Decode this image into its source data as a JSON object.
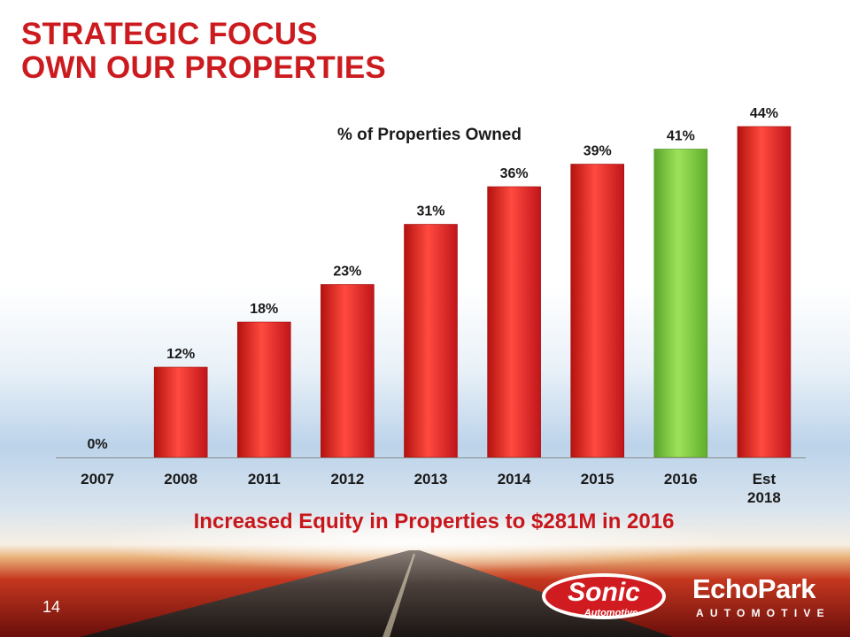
{
  "slide": {
    "title_line1": "STRATEGIC FOCUS",
    "title_line2": "OWN OUR PROPERTIES",
    "caption": "Increased Equity in Properties to $281M in 2016",
    "page_number": "14"
  },
  "logos": {
    "sonic_word": "Sonic",
    "sonic_sub": "Automotive",
    "echopark_word": "EchoPark",
    "echopark_sub": "AUTOMOTIVE"
  },
  "colors": {
    "title": "#cc1b1f",
    "bar_red": "#e52b25",
    "bar_highlight": "#7ed142",
    "caption": "#c8171c"
  },
  "chart_data": {
    "type": "bar",
    "title": "% of Properties Owned",
    "categories": [
      "2007",
      "2008",
      "2011",
      "2012",
      "2013",
      "2014",
      "2015",
      "2016",
      "Est 2018"
    ],
    "values": [
      0,
      12,
      18,
      23,
      31,
      36,
      39,
      41,
      44
    ],
    "data_labels": [
      "0%",
      "12%",
      "18%",
      "23%",
      "31%",
      "36%",
      "39%",
      "41%",
      "44%"
    ],
    "highlight_category": "2016",
    "ylim": [
      0,
      44
    ],
    "grid": false,
    "xlabel": "",
    "ylabel": ""
  }
}
